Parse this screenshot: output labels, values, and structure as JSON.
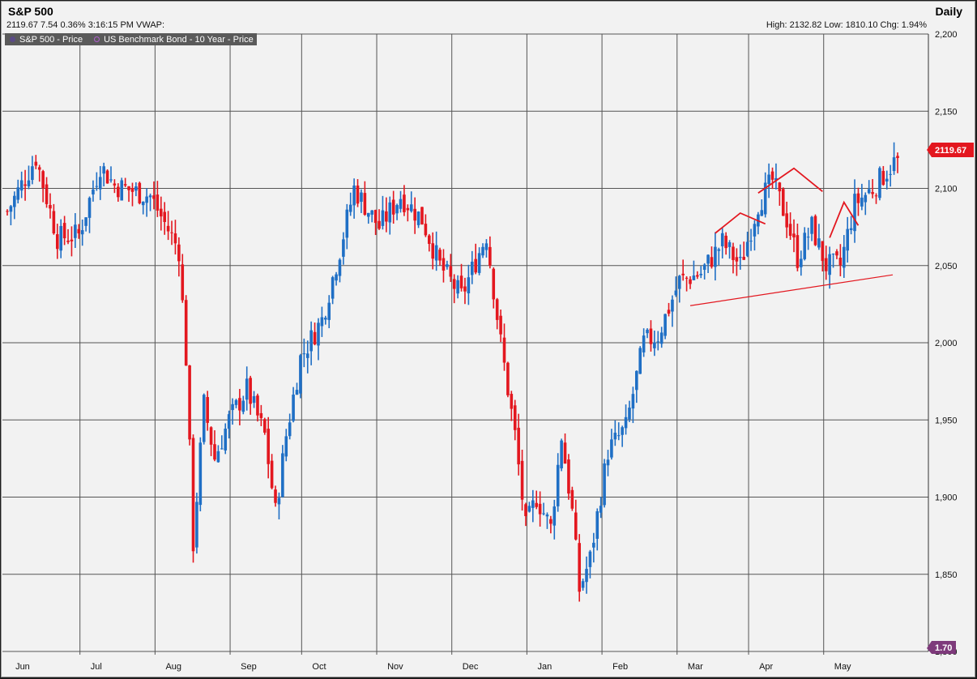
{
  "header": {
    "title": "S&P 500",
    "period": "Daily",
    "quote": "2119.67 7.54 0.36% 3:16:15 PM VWAP:",
    "stats": "High: 2132.82 Low: 1810.10 Chg: 1.94%"
  },
  "legend": [
    {
      "label": "S&P 500 - Price",
      "color": "#5a4a86"
    },
    {
      "label": "US Benchmark Bond - 10 Year - Price",
      "color": "#b25fd0"
    }
  ],
  "colors": {
    "up": "#1f6fc5",
    "down": "#e3171f",
    "grid": "#555555",
    "annotation": "#e3171f",
    "price_tag": "#e3171f",
    "bond_tag": "#7e3a7b"
  },
  "price_tag": "2119.67",
  "bond_tag": "1.70",
  "chart_data": {
    "type": "candlestick",
    "title": "S&P 500",
    "xlabel": "",
    "ylabel": "",
    "ylim": [
      1800,
      2200
    ],
    "y_ticks": [
      "2,200",
      "2,150",
      "2,100",
      "2,050",
      "2,000",
      "1,950",
      "1,900",
      "1,850",
      "1,800"
    ],
    "y_tick_values": [
      2200,
      2150,
      2100,
      2050,
      2000,
      1950,
      1900,
      1850,
      1800
    ],
    "months": [
      "Jun",
      "Jul",
      "Aug",
      "Sep",
      "Oct",
      "Nov",
      "Dec",
      "Jan",
      "Feb",
      "Mar",
      "Apr",
      "May"
    ],
    "grid": true,
    "series": [
      {
        "name": "S&P 500 - Price",
        "trading_days": 250,
        "close_path": [
          {
            "day": 0,
            "value": 2085
          },
          {
            "day": 8,
            "value": 2120
          },
          {
            "day": 14,
            "value": 2068
          },
          {
            "day": 20,
            "value": 2070
          },
          {
            "day": 26,
            "value": 2115
          },
          {
            "day": 30,
            "value": 2102
          },
          {
            "day": 40,
            "value": 2095
          },
          {
            "day": 48,
            "value": 2060
          },
          {
            "day": 50,
            "value": 1990
          },
          {
            "day": 52,
            "value": 1870
          },
          {
            "day": 55,
            "value": 1960
          },
          {
            "day": 58,
            "value": 1925
          },
          {
            "day": 62,
            "value": 1950
          },
          {
            "day": 67,
            "value": 1970
          },
          {
            "day": 72,
            "value": 1940
          },
          {
            "day": 75,
            "value": 1890
          },
          {
            "day": 78,
            "value": 1940
          },
          {
            "day": 82,
            "value": 1990
          },
          {
            "day": 88,
            "value": 2015
          },
          {
            "day": 93,
            "value": 2060
          },
          {
            "day": 97,
            "value": 2100
          },
          {
            "day": 104,
            "value": 2075
          },
          {
            "day": 110,
            "value": 2095
          },
          {
            "day": 116,
            "value": 2080
          },
          {
            "day": 121,
            "value": 2050
          },
          {
            "day": 127,
            "value": 2030
          },
          {
            "day": 134,
            "value": 2070
          },
          {
            "day": 138,
            "value": 2000
          },
          {
            "day": 142,
            "value": 1940
          },
          {
            "day": 145,
            "value": 1880
          },
          {
            "day": 148,
            "value": 1900
          },
          {
            "day": 152,
            "value": 1880
          },
          {
            "day": 155,
            "value": 1940
          },
          {
            "day": 158,
            "value": 1890
          },
          {
            "day": 160,
            "value": 1840
          },
          {
            "day": 163,
            "value": 1860
          },
          {
            "day": 168,
            "value": 1930
          },
          {
            "day": 173,
            "value": 1945
          },
          {
            "day": 178,
            "value": 2000
          },
          {
            "day": 182,
            "value": 2005
          },
          {
            "day": 188,
            "value": 2040
          },
          {
            "day": 194,
            "value": 2045
          },
          {
            "day": 200,
            "value": 2065
          },
          {
            "day": 205,
            "value": 2050
          },
          {
            "day": 210,
            "value": 2090
          },
          {
            "day": 214,
            "value": 2105
          },
          {
            "day": 218,
            "value": 2080
          },
          {
            "day": 221,
            "value": 2055
          },
          {
            "day": 225,
            "value": 2075
          },
          {
            "day": 229,
            "value": 2050
          },
          {
            "day": 233,
            "value": 2050
          },
          {
            "day": 237,
            "value": 2090
          },
          {
            "day": 242,
            "value": 2100
          },
          {
            "day": 249,
            "value": 2119.67
          }
        ]
      },
      {
        "name": "US Benchmark Bond - 10 Year - Price",
        "last": 1.7
      }
    ],
    "annotations": [
      {
        "type": "neckline",
        "from": {
          "day": 191,
          "value": 2024
        },
        "to": {
          "day": 249,
          "value": 2044
        }
      },
      {
        "type": "left-shoulder",
        "points": [
          {
            "day": 198,
            "value": 2071
          },
          {
            "day": 205,
            "value": 2084
          },
          {
            "day": 212,
            "value": 2077
          }
        ]
      },
      {
        "type": "head",
        "points": [
          {
            "day": 210,
            "value": 2097
          },
          {
            "day": 220,
            "value": 2113
          },
          {
            "day": 228,
            "value": 2098
          }
        ]
      },
      {
        "type": "right-shoulder",
        "points": [
          {
            "day": 230,
            "value": 2068
          },
          {
            "day": 234,
            "value": 2091
          },
          {
            "day": 238,
            "value": 2076
          }
        ]
      }
    ]
  }
}
